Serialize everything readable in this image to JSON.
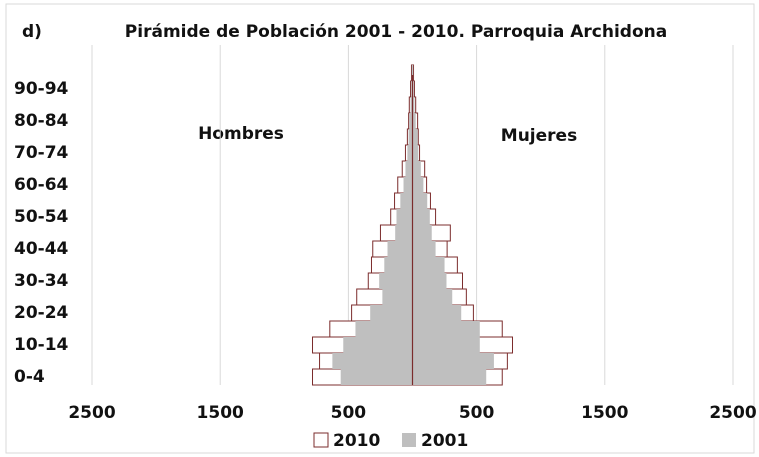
{
  "chart_data": {
    "type": "pyramid",
    "panel_label": "d)",
    "title": "Pirámide de Población 2001 - 2010. Parroquia Archidona",
    "left_label": "Hombres",
    "right_label": "Mujeres",
    "categories": [
      "0-4",
      null,
      "10-14",
      null,
      "20-24",
      null,
      "30-34",
      null,
      "40-44",
      null,
      "50-54",
      null,
      "60-64",
      null,
      "70-74",
      null,
      "80-84",
      null,
      "90-94",
      null
    ],
    "series": [
      {
        "name": "2010",
        "color": "#ffffff",
        "edge": "#7b2c2c",
        "hombres": [
          -780,
          -725,
          -780,
          -645,
          -475,
          -435,
          -345,
          -320,
          -310,
          -250,
          -170,
          -140,
          -115,
          -80,
          -55,
          -40,
          -30,
          -25,
          -15,
          -8
        ],
        "mujeres": [
          700,
          740,
          780,
          700,
          475,
          420,
          390,
          350,
          270,
          295,
          180,
          140,
          110,
          95,
          55,
          45,
          40,
          25,
          15,
          8
        ]
      },
      {
        "name": "2001",
        "color": "#bfbfbf",
        "hombres": [
          -560,
          -625,
          -540,
          -445,
          -330,
          -235,
          -260,
          -220,
          -195,
          -135,
          -125,
          -95,
          -70,
          -55,
          -40,
          -30,
          -25,
          -15,
          -10,
          -5
        ],
        "mujeres": [
          575,
          635,
          525,
          525,
          380,
          310,
          265,
          250,
          180,
          150,
          135,
          115,
          85,
          65,
          45,
          40,
          25,
          15,
          10,
          5
        ]
      }
    ],
    "xlim": [
      -2500,
      2500
    ],
    "xticks": [
      {
        "value": -2500,
        "label": "2500"
      },
      {
        "value": -1500,
        "label": "1500"
      },
      {
        "value": -500,
        "label": "500"
      },
      500,
      1500,
      2500
    ],
    "grid": true,
    "axis_color": "#7b2c2c"
  }
}
